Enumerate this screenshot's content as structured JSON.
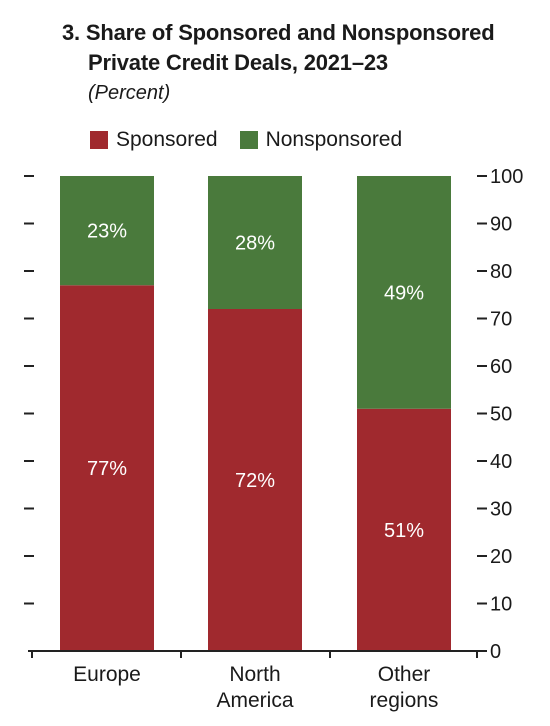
{
  "title_line1": "3. Share of Sponsored and Nonsponsored",
  "title_line2": "Private Credit Deals, 2021–23",
  "subtitle": "(Percent)",
  "colors": {
    "sponsored": "#a0292e",
    "nonsponsored": "#4a7a3c"
  },
  "chart_data": {
    "type": "bar",
    "stacked": true,
    "title": "3. Share of Sponsored and Nonsponsored Private Credit Deals, 2021–23",
    "subtitle": "(Percent)",
    "categories": [
      "Europe",
      "North America",
      "Other regions"
    ],
    "series": [
      {
        "name": "Sponsored",
        "values": [
          77,
          72,
          51
        ],
        "labels": [
          "77%",
          "72%",
          "51%"
        ]
      },
      {
        "name": "Nonsponsored",
        "values": [
          23,
          28,
          49
        ],
        "labels": [
          "23%",
          "28%",
          "49%"
        ]
      }
    ],
    "ylim": [
      0,
      100
    ],
    "yticks": [
      "0",
      "10",
      "20",
      "30",
      "40",
      "50",
      "60",
      "70",
      "80",
      "90",
      "100"
    ],
    "legend": "top",
    "grid": false
  }
}
